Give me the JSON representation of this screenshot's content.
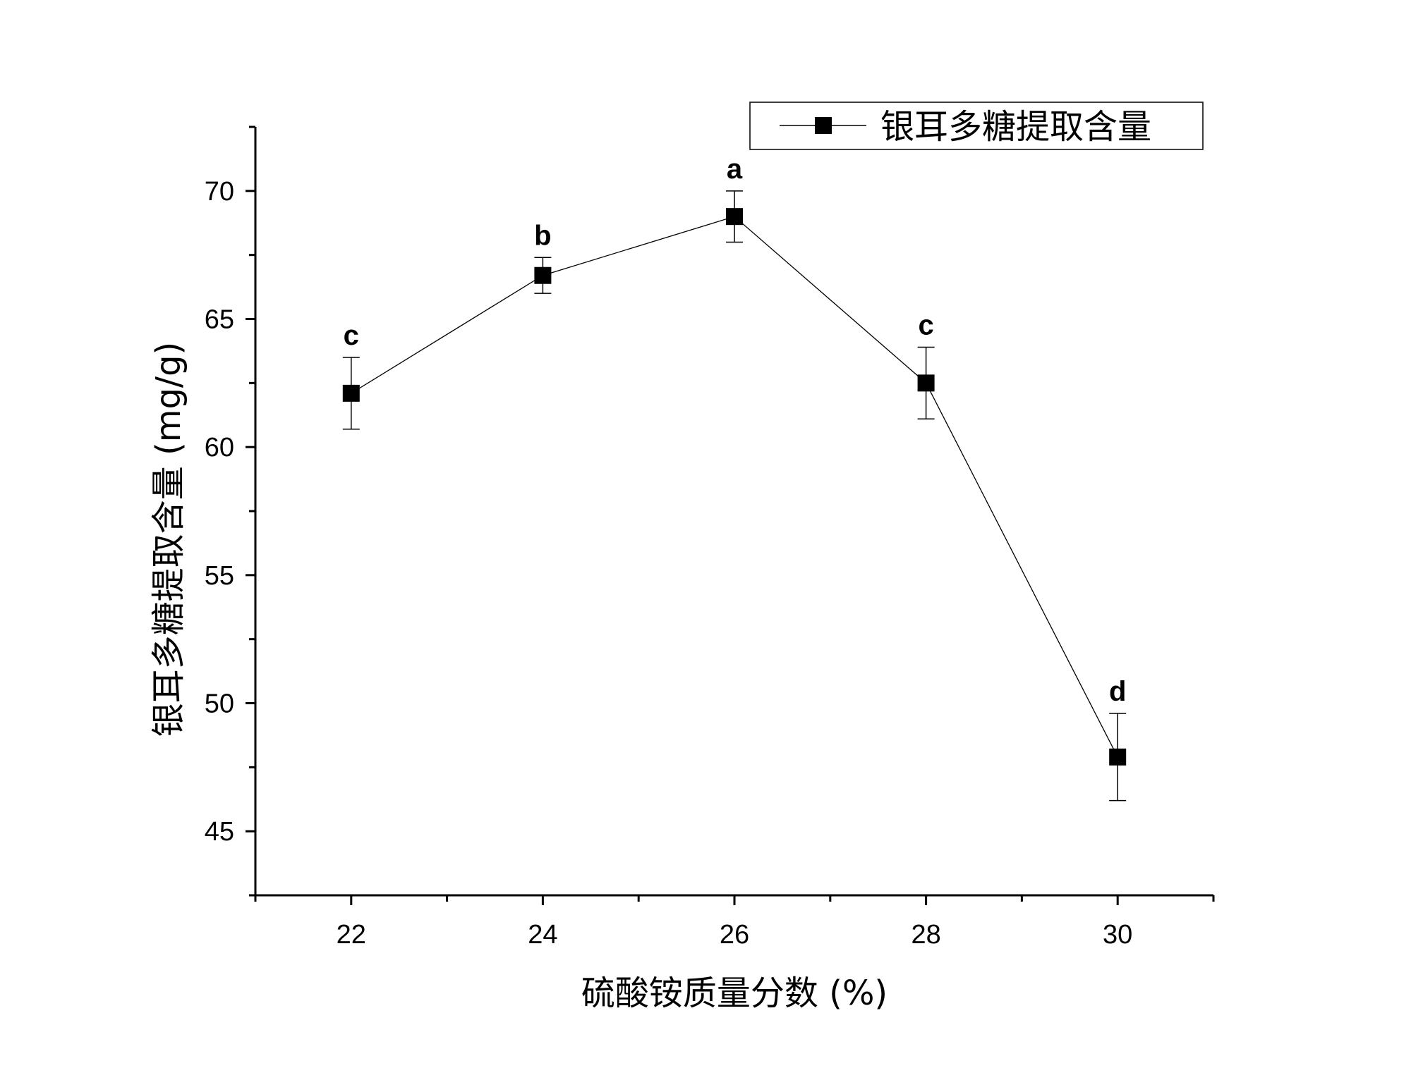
{
  "chart_data": {
    "type": "line",
    "xlabel": "硫酸铵质量分数 (%)",
    "ylabel": "银耳多糖提取含量 (mg/g)",
    "xlim": [
      21,
      31
    ],
    "ylim": [
      42.5,
      72.5
    ],
    "x_ticks": [
      22,
      24,
      26,
      28,
      30
    ],
    "y_ticks": [
      45,
      50,
      55,
      60,
      65,
      70
    ],
    "grid": false,
    "legend_position": "top-right",
    "series": [
      {
        "name": "银耳多糖提取含量",
        "marker": "square",
        "color": "#000000",
        "points": [
          {
            "x": 22,
            "y": 62.1,
            "err": 1.4,
            "label": "c"
          },
          {
            "x": 24,
            "y": 66.7,
            "err": 0.7,
            "label": "b"
          },
          {
            "x": 26,
            "y": 69.0,
            "err": 1.0,
            "label": "a"
          },
          {
            "x": 28,
            "y": 62.5,
            "err": 1.4,
            "label": "c"
          },
          {
            "x": 30,
            "y": 47.9,
            "err": 1.7,
            "label": "d"
          }
        ]
      }
    ]
  }
}
